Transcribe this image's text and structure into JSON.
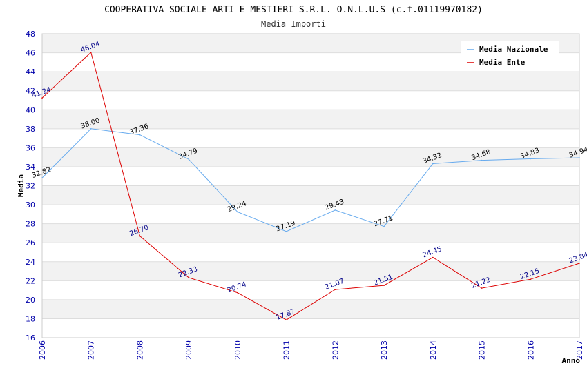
{
  "chart_data": {
    "type": "line",
    "title": "COOPERATIVA SOCIALE ARTI E MESTIERI S.R.L. O.N.L.U.S (c.f.01119970182)",
    "subtitle": "Media Importi",
    "xlabel": "Anno",
    "ylabel": "Media",
    "ylim": [
      16,
      48
    ],
    "yticks": [
      16,
      18,
      20,
      22,
      24,
      26,
      28,
      30,
      32,
      34,
      36,
      38,
      40,
      42,
      44,
      46,
      48
    ],
    "x": [
      "2006",
      "2007",
      "2008",
      "2009",
      "2010",
      "2011",
      "2012",
      "2013",
      "2014",
      "2015",
      "2016",
      "2017"
    ],
    "grid": true,
    "legend_position": "top-right",
    "tick_color": "#0000aa",
    "series": [
      {
        "name": "Media Nazionale",
        "color": "#66aaee",
        "label_color": "#000000",
        "values": [
          32.82,
          38.0,
          37.36,
          34.79,
          29.24,
          27.19,
          29.43,
          27.71,
          34.32,
          34.68,
          34.83,
          34.94
        ],
        "labels": [
          "32.82",
          "38.00",
          "37.36",
          "34.79",
          "29.24",
          "27.19",
          "29.43",
          "27.71",
          "34.32",
          "34.68",
          "34.83",
          "34.94"
        ]
      },
      {
        "name": "Media Ente",
        "color": "#dd0000",
        "label_color": "#000088",
        "values": [
          41.24,
          46.04,
          26.7,
          22.33,
          20.74,
          17.87,
          21.07,
          21.51,
          24.45,
          21.22,
          22.15,
          23.84
        ],
        "labels": [
          "41.24",
          "46.04",
          "26.70",
          "22.33",
          "20.74",
          "17.87",
          "21.07",
          "21.51",
          "24.45",
          "21.22",
          "22.15",
          "23.84"
        ]
      }
    ]
  }
}
